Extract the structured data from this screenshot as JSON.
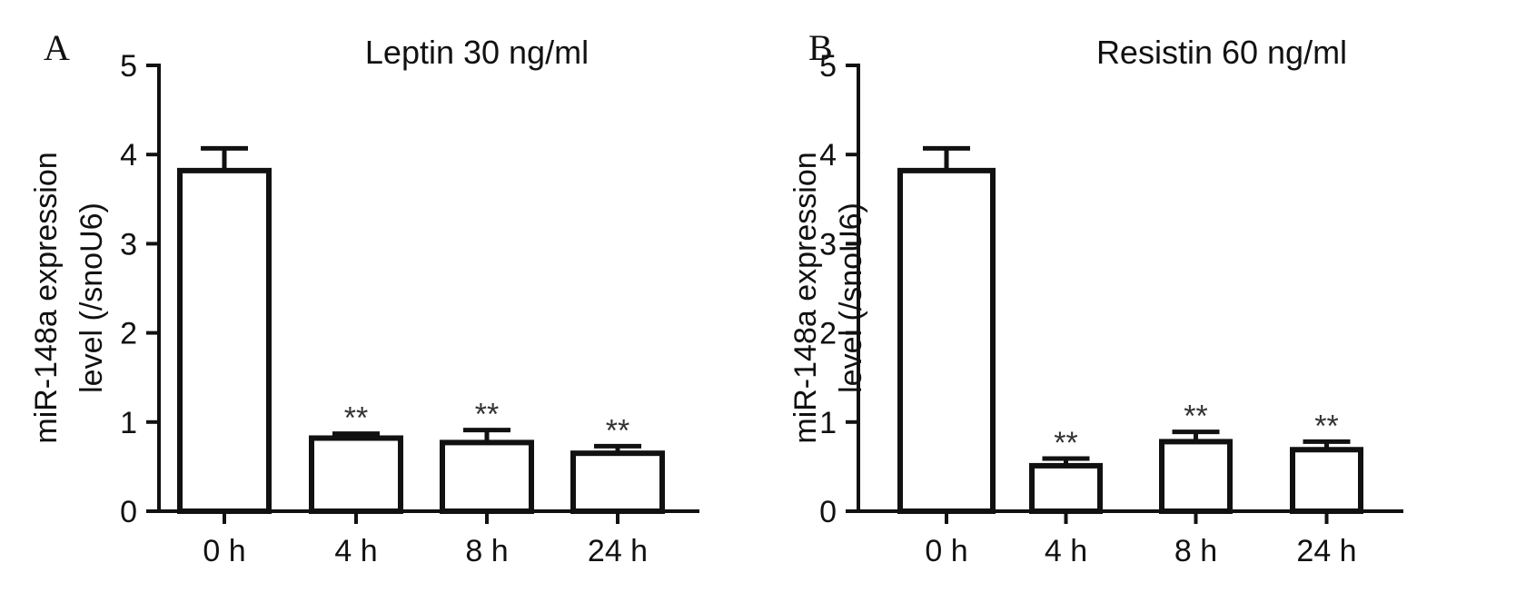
{
  "chart_data": [
    {
      "panel": "A",
      "type": "bar",
      "title": "Leptin 30 ng/ml",
      "xlabel": "",
      "ylabel": [
        "miR-148a expression",
        "level (/snoU6)"
      ],
      "categories": [
        "0 h",
        "4 h",
        "8 h",
        "24 h"
      ],
      "values": [
        3.82,
        0.82,
        0.77,
        0.65
      ],
      "errors": [
        0.25,
        0.05,
        0.14,
        0.08
      ],
      "significance": [
        "",
        "**",
        "**",
        "**"
      ],
      "ylim": [
        0,
        5
      ],
      "yticks": [
        "0",
        "1",
        "2",
        "3",
        "4",
        "5"
      ],
      "grid": false
    },
    {
      "panel": "B",
      "type": "bar",
      "title": "Resistin 60 ng/ml",
      "xlabel": "",
      "ylabel": [
        "miR-148a expression",
        "level (/snoU6)"
      ],
      "categories": [
        "0 h",
        "4 h",
        "8 h",
        "24 h"
      ],
      "values": [
        3.82,
        0.51,
        0.78,
        0.69
      ],
      "errors": [
        0.25,
        0.08,
        0.11,
        0.09
      ],
      "significance": [
        "",
        "**",
        "**",
        "**"
      ],
      "ylim": [
        0,
        5
      ],
      "yticks": [
        "0",
        "1",
        "2",
        "3",
        "4",
        "5"
      ],
      "grid": false
    }
  ]
}
